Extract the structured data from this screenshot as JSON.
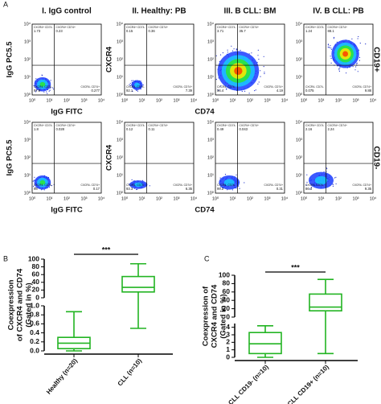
{
  "panel_a": {
    "label": "A",
    "columns": [
      "I. IgG control",
      "II. Healthy: PB",
      "III. B CLL: BM",
      "IV. B CLL: PB"
    ],
    "rows": [
      "CD19+",
      "CD19-"
    ],
    "y_labels": [
      "IgG PC5.5",
      "CXCR4"
    ],
    "x_labels": [
      "IgG FITC",
      "CD74"
    ],
    "axis_ticks": [
      "10⁰",
      "10¹",
      "10²",
      "10³",
      "10⁴"
    ],
    "quadrant_names": [
      "CXCR4+ CD74-",
      "CXCR4+ CD74+",
      "CXCR4- CD74-",
      "CXCR4- CD74+"
    ],
    "plots": [
      [
        [
          1.73,
          0.23,
          97.8,
          0.277
        ],
        [
          0.15,
          0.36,
          92.1,
          7.39
        ],
        [
          3.71,
          35.7,
          56.4,
          4.19
        ],
        [
          1.24,
          88.1,
          0.075,
          9.88
        ]
      ],
      [
        [
          1.8,
          0.028,
          98.0,
          0.17
        ],
        [
          0.12,
          0.11,
          93.3,
          6.35
        ],
        [
          0.49,
          0.043,
          99.2,
          0.31
        ],
        [
          2.16,
          2.24,
          86.3,
          9.35
        ]
      ]
    ]
  },
  "chart_data": [
    {
      "type": "box",
      "label": "B",
      "color": "#22b422",
      "annotation": "***",
      "ylabel": [
        "Coexpression",
        "of CXCR4 and CD74",
        "(Gated in %)"
      ],
      "categories": [
        "Healthy (n=20)",
        "CLL (n=10)"
      ],
      "boxes": [
        {
          "min": 0,
          "q1": 0.05,
          "median": 0.17,
          "q3": 0.3,
          "max": 0.87
        },
        {
          "min": 0.5,
          "q1": 15,
          "median": 27,
          "q3": 55,
          "max": 88
        }
      ],
      "segments": [
        {
          "ylim": [
            0,
            1
          ],
          "yticks": [
            {
              "value": 0,
              "label": "0.0"
            },
            0.2,
            0.4,
            0.6,
            0.8,
            {
              "value": 1,
              "label": "1.0"
            }
          ]
        },
        {
          "ylim": [
            0,
            100
          ],
          "yticks": [
            0,
            20,
            40,
            60,
            80,
            100
          ]
        }
      ]
    },
    {
      "type": "box",
      "label": "C",
      "color": "#22b422",
      "annotation": "***",
      "ylabel": [
        "Coexpression of",
        "CXCR4 and CD74",
        "(Gated in %)"
      ],
      "categories": [
        "CLL CD19- (n=10)",
        "CLL CD19+ (n=10)"
      ],
      "boxes": [
        {
          "min": 0,
          "q1": 0.5,
          "median": 1.8,
          "q3": 3.3,
          "max": 4.2
        },
        {
          "min": 0.5,
          "q1": 15,
          "median": 24,
          "q3": 55,
          "max": 90
        }
      ],
      "segments": [
        {
          "ylim": [
            0,
            4.5
          ],
          "yticks": [
            0,
            1,
            2,
            3,
            4
          ]
        },
        {
          "ylim": [
            0,
            100
          ],
          "yticks": [
            0,
            20,
            40,
            60,
            80,
            100
          ]
        }
      ]
    }
  ]
}
